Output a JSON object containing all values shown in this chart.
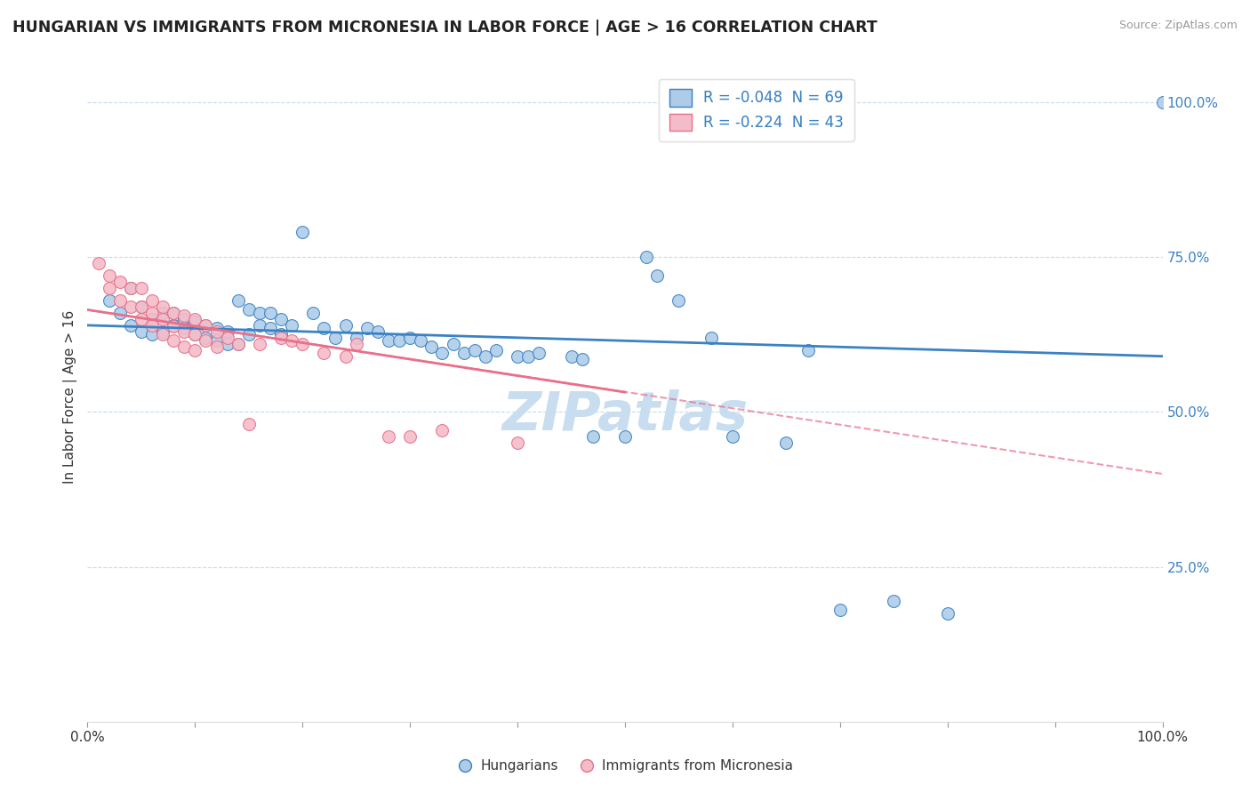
{
  "title": "HUNGARIAN VS IMMIGRANTS FROM MICRONESIA IN LABOR FORCE | AGE > 16 CORRELATION CHART",
  "source": "Source: ZipAtlas.com",
  "ylabel": "In Labor Force | Age > 16",
  "legend_blue_r": "R = -0.048",
  "legend_blue_n": "N = 69",
  "legend_pink_r": "R = -0.224",
  "legend_pink_n": "N = 43",
  "legend_blue_label": "Hungarians",
  "legend_pink_label": "Immigrants from Micronesia",
  "blue_scatter": [
    [
      0.02,
      0.68
    ],
    [
      0.03,
      0.66
    ],
    [
      0.04,
      0.7
    ],
    [
      0.04,
      0.64
    ],
    [
      0.05,
      0.67
    ],
    [
      0.05,
      0.63
    ],
    [
      0.06,
      0.65
    ],
    [
      0.06,
      0.625
    ],
    [
      0.07,
      0.66
    ],
    [
      0.07,
      0.63
    ],
    [
      0.08,
      0.66
    ],
    [
      0.08,
      0.64
    ],
    [
      0.09,
      0.65
    ],
    [
      0.09,
      0.635
    ],
    [
      0.1,
      0.645
    ],
    [
      0.1,
      0.625
    ],
    [
      0.11,
      0.64
    ],
    [
      0.11,
      0.62
    ],
    [
      0.12,
      0.635
    ],
    [
      0.12,
      0.615
    ],
    [
      0.13,
      0.63
    ],
    [
      0.13,
      0.61
    ],
    [
      0.14,
      0.68
    ],
    [
      0.14,
      0.61
    ],
    [
      0.15,
      0.665
    ],
    [
      0.15,
      0.625
    ],
    [
      0.16,
      0.66
    ],
    [
      0.16,
      0.64
    ],
    [
      0.17,
      0.66
    ],
    [
      0.17,
      0.635
    ],
    [
      0.18,
      0.65
    ],
    [
      0.18,
      0.625
    ],
    [
      0.19,
      0.64
    ],
    [
      0.2,
      0.79
    ],
    [
      0.21,
      0.66
    ],
    [
      0.22,
      0.635
    ],
    [
      0.23,
      0.62
    ],
    [
      0.24,
      0.64
    ],
    [
      0.25,
      0.62
    ],
    [
      0.26,
      0.635
    ],
    [
      0.27,
      0.63
    ],
    [
      0.28,
      0.615
    ],
    [
      0.29,
      0.615
    ],
    [
      0.3,
      0.62
    ],
    [
      0.31,
      0.615
    ],
    [
      0.32,
      0.605
    ],
    [
      0.33,
      0.595
    ],
    [
      0.34,
      0.61
    ],
    [
      0.35,
      0.595
    ],
    [
      0.36,
      0.6
    ],
    [
      0.37,
      0.59
    ],
    [
      0.38,
      0.6
    ],
    [
      0.4,
      0.59
    ],
    [
      0.41,
      0.59
    ],
    [
      0.42,
      0.595
    ],
    [
      0.45,
      0.59
    ],
    [
      0.46,
      0.585
    ],
    [
      0.47,
      0.46
    ],
    [
      0.5,
      0.46
    ],
    [
      0.52,
      0.75
    ],
    [
      0.53,
      0.72
    ],
    [
      0.55,
      0.68
    ],
    [
      0.58,
      0.62
    ],
    [
      0.6,
      0.46
    ],
    [
      0.65,
      0.45
    ],
    [
      0.67,
      0.6
    ],
    [
      0.7,
      0.18
    ],
    [
      0.75,
      0.195
    ],
    [
      0.8,
      0.175
    ],
    [
      1.0,
      1.0
    ]
  ],
  "pink_scatter": [
    [
      0.01,
      0.74
    ],
    [
      0.02,
      0.72
    ],
    [
      0.02,
      0.7
    ],
    [
      0.03,
      0.71
    ],
    [
      0.03,
      0.68
    ],
    [
      0.04,
      0.7
    ],
    [
      0.04,
      0.67
    ],
    [
      0.05,
      0.7
    ],
    [
      0.05,
      0.67
    ],
    [
      0.05,
      0.65
    ],
    [
      0.06,
      0.68
    ],
    [
      0.06,
      0.66
    ],
    [
      0.06,
      0.64
    ],
    [
      0.07,
      0.67
    ],
    [
      0.07,
      0.65
    ],
    [
      0.07,
      0.625
    ],
    [
      0.08,
      0.66
    ],
    [
      0.08,
      0.638
    ],
    [
      0.08,
      0.615
    ],
    [
      0.09,
      0.655
    ],
    [
      0.09,
      0.63
    ],
    [
      0.09,
      0.605
    ],
    [
      0.1,
      0.65
    ],
    [
      0.1,
      0.625
    ],
    [
      0.1,
      0.6
    ],
    [
      0.11,
      0.64
    ],
    [
      0.11,
      0.615
    ],
    [
      0.12,
      0.63
    ],
    [
      0.12,
      0.605
    ],
    [
      0.13,
      0.62
    ],
    [
      0.14,
      0.61
    ],
    [
      0.15,
      0.48
    ],
    [
      0.16,
      0.61
    ],
    [
      0.18,
      0.62
    ],
    [
      0.19,
      0.615
    ],
    [
      0.2,
      0.61
    ],
    [
      0.22,
      0.595
    ],
    [
      0.24,
      0.59
    ],
    [
      0.25,
      0.61
    ],
    [
      0.28,
      0.46
    ],
    [
      0.3,
      0.46
    ],
    [
      0.33,
      0.47
    ],
    [
      0.4,
      0.45
    ]
  ],
  "blue_line_x": [
    0.0,
    1.0
  ],
  "blue_line_y": [
    0.64,
    0.59
  ],
  "pink_line_x": [
    0.0,
    1.0
  ],
  "pink_line_y": [
    0.665,
    0.4
  ],
  "blue_color": "#aecce8",
  "blue_line_color": "#3b82c4",
  "pink_color": "#f4bcc8",
  "pink_line_color": "#e8708a",
  "watermark": "ZIPatlas",
  "watermark_color": "#c8ddf0",
  "bg_color": "#ffffff",
  "grid_color": "#c8daf0",
  "xlim": [
    0.0,
    1.0
  ],
  "ylim": [
    0.0,
    1.05
  ],
  "yticks": [
    0.25,
    0.5,
    0.75,
    1.0
  ],
  "ytick_labels": [
    "25.0%",
    "50.0%",
    "75.0%",
    "100.0%"
  ]
}
